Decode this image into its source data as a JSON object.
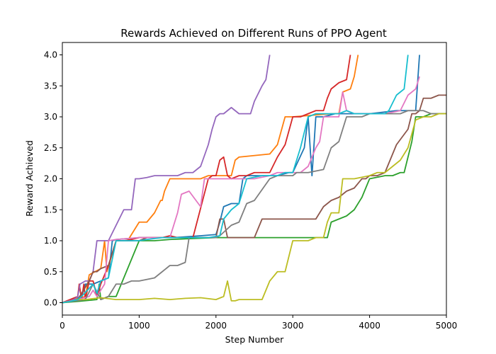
{
  "chart_data": {
    "type": "line",
    "title": "Rewards Achieved on Different Runs of PPO Agent",
    "xlabel": "Step Number",
    "ylabel": "Reward Achieved",
    "xlim": [
      0,
      5000
    ],
    "ylim": [
      -0.2,
      4.2
    ],
    "xticks": [
      0,
      1000,
      2000,
      3000,
      4000,
      5000
    ],
    "yticks": [
      0.0,
      0.5,
      1.0,
      1.5,
      2.0,
      2.5,
      3.0,
      3.5,
      4.0
    ],
    "xtick_labels": [
      "0",
      "1000",
      "2000",
      "3000",
      "4000",
      "5000"
    ],
    "ytick_labels": [
      "0.0",
      "0.5",
      "1.0",
      "1.5",
      "2.0",
      "2.5",
      "3.0",
      "3.5",
      "4.0"
    ],
    "grid": false,
    "legend": null,
    "series": [
      {
        "color": "#1f77b4",
        "x": [
          0,
          150,
          250,
          300,
          400,
          500,
          600,
          650,
          700,
          1000,
          1400,
          1450,
          1800,
          2000,
          2050,
          2100,
          2200,
          2300,
          2350,
          2400,
          2450,
          2800,
          2950,
          3000,
          3150,
          3200,
          3250,
          3300,
          3400,
          3550,
          3800,
          4000,
          4350,
          4400,
          4600,
          4650
        ],
        "y": [
          0.0,
          0.05,
          0.1,
          0.3,
          0.3,
          0.35,
          0.4,
          1.0,
          1.02,
          1.05,
          1.05,
          1.05,
          1.08,
          1.1,
          1.3,
          1.55,
          1.6,
          1.6,
          2.0,
          2.05,
          2.05,
          2.05,
          2.1,
          2.1,
          2.5,
          3.0,
          2.05,
          3.0,
          3.0,
          3.05,
          3.05,
          3.05,
          3.1,
          3.1,
          3.1,
          4.0
        ]
      },
      {
        "color": "#ff7f0e",
        "x": [
          0,
          150,
          300,
          350,
          500,
          550,
          580,
          700,
          850,
          950,
          1000,
          1100,
          1200,
          1280,
          1300,
          1330,
          1400,
          1800,
          1900,
          1950,
          2200,
          2250,
          2300,
          2700,
          2800,
          2900,
          2950,
          3000,
          3500,
          3600,
          3650,
          3750,
          3800,
          3850
        ],
        "y": [
          0.0,
          0.05,
          0.1,
          0.45,
          0.55,
          1.0,
          0.5,
          1.0,
          1.0,
          1.2,
          1.3,
          1.3,
          1.45,
          1.65,
          1.65,
          1.8,
          2.0,
          2.0,
          2.05,
          2.05,
          2.05,
          2.3,
          2.35,
          2.4,
          2.55,
          3.0,
          3.0,
          3.0,
          3.05,
          3.05,
          3.4,
          3.45,
          3.65,
          4.0
        ]
      },
      {
        "color": "#2ca02c",
        "x": [
          0,
          200,
          450,
          480,
          500,
          600,
          700,
          1000,
          1200,
          1400,
          1600,
          2000,
          2050,
          2200,
          2400,
          2600,
          2800,
          3000,
          3200,
          3400,
          3450,
          3500,
          3600,
          3700,
          3800,
          3900,
          4000,
          4200,
          4300,
          4400,
          4450,
          4550,
          4600,
          4700,
          4800,
          4900,
          5000
        ],
        "y": [
          0.0,
          0.02,
          0.05,
          0.3,
          0.05,
          0.1,
          0.1,
          1.0,
          1.0,
          1.02,
          1.03,
          1.05,
          1.05,
          1.05,
          1.05,
          1.05,
          1.05,
          1.05,
          1.05,
          1.05,
          1.05,
          1.3,
          1.35,
          1.4,
          1.5,
          1.7,
          2.0,
          2.05,
          2.05,
          2.1,
          2.1,
          2.6,
          3.0,
          3.0,
          3.05,
          3.05,
          3.05
        ]
      },
      {
        "color": "#d62728",
        "x": [
          0,
          200,
          220,
          250,
          280,
          300,
          350,
          400,
          450,
          500,
          600,
          700,
          800,
          900,
          1000,
          1300,
          1400,
          1500,
          1700,
          1900,
          1950,
          2000,
          2050,
          2100,
          2150,
          2200,
          2300,
          2400,
          2500,
          2700,
          2800,
          2900,
          3000,
          3100,
          3200,
          3300,
          3400,
          3450,
          3500,
          3600,
          3700,
          3750
        ],
        "y": [
          0.0,
          0.1,
          0.3,
          0.05,
          0.3,
          0.05,
          0.35,
          0.35,
          0.1,
          0.3,
          0.6,
          1.0,
          1.0,
          1.02,
          1.05,
          1.05,
          1.08,
          1.05,
          1.05,
          2.0,
          2.05,
          2.05,
          2.3,
          2.35,
          2.05,
          2.0,
          2.05,
          2.05,
          2.1,
          2.1,
          2.35,
          2.55,
          3.0,
          3.0,
          3.05,
          3.1,
          3.1,
          3.3,
          3.45,
          3.55,
          3.6,
          4.0
        ]
      },
      {
        "color": "#9467bd",
        "x": [
          0,
          150,
          200,
          230,
          300,
          350,
          400,
          450,
          550,
          600,
          800,
          900,
          950,
          1000,
          1100,
          1200,
          1300,
          1400,
          1500,
          1600,
          1700,
          1800,
          1900,
          1950,
          2000,
          2050,
          2100,
          2200,
          2300,
          2450,
          2500,
          2600,
          2650,
          2700
        ],
        "y": [
          0.0,
          0.05,
          0.1,
          0.3,
          0.35,
          0.35,
          0.5,
          1.0,
          1.0,
          1.0,
          1.5,
          1.5,
          2.0,
          2.0,
          2.02,
          2.05,
          2.05,
          2.05,
          2.05,
          2.1,
          2.1,
          2.2,
          2.55,
          2.8,
          3.0,
          3.05,
          3.05,
          3.15,
          3.05,
          3.05,
          3.25,
          3.5,
          3.6,
          4.0
        ]
      },
      {
        "color": "#8c564b",
        "x": [
          0,
          200,
          350,
          400,
          450,
          500,
          600,
          700,
          1000,
          1100,
          1300,
          1450,
          1600,
          2000,
          2050,
          2100,
          2150,
          2200,
          2500,
          2600,
          2800,
          2900,
          3000,
          3200,
          3300,
          3400,
          3500,
          3600,
          3700,
          3800,
          3900,
          3950,
          4000,
          4100,
          4200,
          4300,
          4350,
          4500,
          4550,
          4600,
          4650,
          4700,
          4800,
          4900,
          4950,
          5000
        ],
        "y": [
          0.0,
          0.05,
          0.35,
          0.5,
          0.5,
          0.55,
          0.6,
          1.0,
          1.0,
          1.05,
          1.05,
          1.05,
          1.05,
          1.05,
          1.35,
          1.35,
          1.05,
          1.05,
          1.05,
          1.35,
          1.35,
          1.35,
          1.35,
          1.35,
          1.35,
          1.55,
          1.65,
          1.7,
          1.8,
          1.85,
          2.0,
          2.0,
          2.05,
          2.05,
          2.1,
          2.4,
          2.55,
          2.8,
          3.05,
          3.05,
          3.1,
          3.3,
          3.3,
          3.35,
          3.35,
          3.35
        ]
      },
      {
        "color": "#e377c2",
        "x": [
          0,
          200,
          350,
          400,
          450,
          550,
          600,
          700,
          1000,
          1200,
          1400,
          1500,
          1550,
          1650,
          1800,
          1850,
          2000,
          2500,
          2700,
          2800,
          3000,
          3100,
          3200,
          3300,
          3350,
          3400,
          3600,
          3650,
          3700,
          3800,
          4000,
          4200,
          4400,
          4500,
          4550,
          4600,
          4650
        ],
        "y": [
          0.0,
          0.05,
          0.1,
          0.2,
          0.1,
          0.3,
          1.0,
          1.02,
          1.05,
          1.05,
          1.05,
          1.45,
          1.75,
          1.8,
          1.55,
          2.0,
          2.0,
          2.0,
          2.05,
          2.1,
          2.1,
          2.1,
          2.2,
          2.5,
          2.6,
          3.0,
          3.0,
          3.4,
          3.1,
          3.05,
          3.05,
          3.05,
          3.1,
          3.35,
          3.4,
          3.45,
          3.65
        ]
      },
      {
        "color": "#7f7f7f",
        "x": [
          0,
          300,
          400,
          500,
          600,
          700,
          800,
          900,
          1000,
          1200,
          1300,
          1400,
          1500,
          1600,
          1650,
          1700,
          1800,
          2000,
          2050,
          2200,
          2300,
          2400,
          2500,
          2700,
          2800,
          3000,
          3050,
          3100,
          3200,
          3400,
          3500,
          3600,
          3650,
          3700,
          3900,
          4000,
          4200,
          4400,
          4500,
          4700,
          4800,
          4900,
          5000
        ],
        "y": [
          0.0,
          0.05,
          0.3,
          0.05,
          0.1,
          0.3,
          0.3,
          0.35,
          0.35,
          0.4,
          0.5,
          0.6,
          0.6,
          0.65,
          1.05,
          1.05,
          1.05,
          1.05,
          1.08,
          1.25,
          1.3,
          1.6,
          1.65,
          2.0,
          2.05,
          2.05,
          2.1,
          2.1,
          2.1,
          2.15,
          2.5,
          2.6,
          2.8,
          3.0,
          3.0,
          3.05,
          3.05,
          3.05,
          3.1,
          3.1,
          3.05,
          3.05,
          3.05
        ]
      },
      {
        "color": "#bcbd22",
        "x": [
          0,
          100,
          200,
          300,
          500,
          700,
          900,
          1000,
          1200,
          1400,
          1600,
          1800,
          2000,
          2100,
          2150,
          2200,
          2250,
          2300,
          2400,
          2500,
          2600,
          2700,
          2800,
          2900,
          3000,
          3200,
          3300,
          3400,
          3450,
          3500,
          3600,
          3650,
          3700,
          3800,
          4000,
          4100,
          4200,
          4300,
          4400,
          4500,
          4600,
          4700,
          4800,
          4900,
          5000
        ],
        "y": [
          0.0,
          0.02,
          0.05,
          0.05,
          0.08,
          0.05,
          0.05,
          0.05,
          0.07,
          0.05,
          0.07,
          0.08,
          0.05,
          0.1,
          0.35,
          0.03,
          0.03,
          0.05,
          0.05,
          0.05,
          0.05,
          0.35,
          0.5,
          0.5,
          1.0,
          1.0,
          1.05,
          1.05,
          1.3,
          1.45,
          1.45,
          2.0,
          2.0,
          2.0,
          2.05,
          2.1,
          2.1,
          2.2,
          2.3,
          2.5,
          2.95,
          3.0,
          3.0,
          3.05,
          3.05
        ]
      },
      {
        "color": "#17becf",
        "x": [
          0,
          100,
          200,
          250,
          400,
          450,
          500,
          600,
          700,
          900,
          1000,
          1100,
          1300,
          1400,
          1700,
          1900,
          2050,
          2100,
          2200,
          2300,
          2400,
          2600,
          2800,
          2900,
          3000,
          3100,
          3200,
          3300,
          3400,
          3600,
          3700,
          3800,
          4000,
          4200,
          4250,
          4350,
          4400,
          4450,
          4500
        ],
        "y": [
          0.0,
          0.02,
          0.05,
          0.1,
          0.3,
          0.15,
          0.35,
          0.4,
          1.0,
          1.0,
          1.0,
          1.02,
          1.05,
          1.05,
          1.05,
          1.05,
          1.08,
          1.35,
          1.5,
          1.6,
          2.0,
          2.05,
          2.05,
          2.1,
          2.1,
          2.5,
          3.0,
          3.05,
          3.05,
          3.05,
          3.1,
          3.05,
          3.05,
          3.05,
          3.1,
          3.35,
          3.4,
          3.45,
          4.0
        ]
      }
    ]
  }
}
